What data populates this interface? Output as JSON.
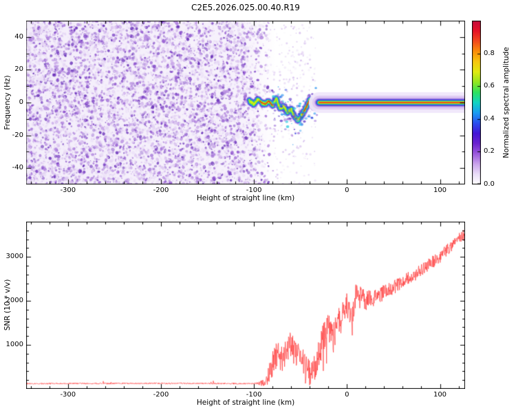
{
  "title": "C2E5.2026.025.00.40.R19",
  "colors": {
    "background": "#ffffff",
    "axis": "#000000",
    "snr_line": "#ff4040"
  },
  "chart_data": [
    {
      "type": "heatmap",
      "name": "spectrogram",
      "xlabel": "Height of straight line (km)",
      "ylabel": "Frequency (Hz)",
      "xlim": [
        -345,
        127
      ],
      "ylim": [
        -50,
        50
      ],
      "xticks": [
        -300,
        -200,
        -100,
        0,
        100
      ],
      "yticks": [
        40,
        20,
        0,
        -20,
        -40
      ],
      "grid": false,
      "colorbar": {
        "label": "Normalized spectral amplitude",
        "ticks": [
          "0.0",
          "0.2",
          "0.4",
          "0.6",
          "0.8"
        ],
        "tick_values": [
          0,
          0.2,
          0.4,
          0.6,
          0.8
        ],
        "range": [
          0,
          1
        ],
        "stops": [
          "#ffffff",
          "#eadef8",
          "#caa3ec",
          "#9b59dd",
          "#6b22cf",
          "#4316d6",
          "#2b50f0",
          "#1a9cf2",
          "#12d4c2",
          "#2ee25e",
          "#93e620",
          "#e0ea10",
          "#f7c60e",
          "#fb8d0a",
          "#f2491c",
          "#e51226",
          "#c50a3c"
        ]
      },
      "noise": {
        "x_range": [
          -345,
          -78
        ],
        "fade_start": -112,
        "freq_range": [
          -49,
          49
        ],
        "character": "low-amplitude purple speckle noise (amplitude ~0-0.3), fading out near -80 km"
      },
      "signal": {
        "band_x_range": [
          -30,
          127
        ],
        "band_center_hz": 0,
        "character": "coherent narrowband signal near 0 Hz, amplitude ~1 at core (red) with green/cyan/blue/purple fringes; wavy frequency excursions between -105 and -30 km",
        "wave_points": [
          [
            -105,
            1
          ],
          [
            -100,
            -1
          ],
          [
            -96,
            2
          ],
          [
            -92,
            0
          ],
          [
            -88,
            -1
          ],
          [
            -84,
            1
          ],
          [
            -80,
            -2
          ],
          [
            -76,
            3
          ],
          [
            -72,
            -4
          ],
          [
            -68,
            -2
          ],
          [
            -64,
            -6
          ],
          [
            -60,
            -4
          ],
          [
            -56,
            -9
          ],
          [
            -52,
            -11
          ],
          [
            -48,
            -7
          ],
          [
            -44,
            -3
          ],
          [
            -40,
            2
          ],
          [
            -36,
            -3
          ],
          [
            -32,
            -1
          ],
          [
            -30,
            0
          ]
        ]
      }
    },
    {
      "type": "line",
      "name": "snr",
      "xlabel": "Height of straight line (km)",
      "ylabel": "SNR (10 * v/v)",
      "xlim": [
        -345,
        127
      ],
      "ylim": [
        0,
        3800
      ],
      "xticks": [
        -300,
        -200,
        -100,
        0,
        100
      ],
      "yticks": [
        1000,
        2000,
        3000
      ],
      "line_color": "#ff4040",
      "x": [
        -345,
        -200,
        -100,
        -90,
        -85,
        -80,
        -75,
        -70,
        -65,
        -60,
        -55,
        -50,
        -45,
        -40,
        -35,
        -30,
        -25,
        -20,
        -15,
        -10,
        -5,
        0,
        5,
        10,
        15,
        20,
        30,
        40,
        50,
        60,
        70,
        80,
        90,
        100,
        110,
        120,
        127
      ],
      "y": [
        120,
        125,
        120,
        140,
        250,
        550,
        800,
        650,
        900,
        1000,
        750,
        850,
        450,
        320,
        480,
        800,
        1200,
        1400,
        1100,
        1500,
        1800,
        1900,
        1600,
        2200,
        2100,
        2000,
        2100,
        2200,
        2300,
        2450,
        2550,
        2700,
        2850,
        3000,
        3200,
        3400,
        3520
      ],
      "noise_band_x": [
        -345,
        -100,
        -90,
        -80,
        -20,
        20,
        60,
        127
      ],
      "noise_band_halfwidth": [
        15,
        15,
        80,
        300,
        350,
        220,
        150,
        130
      ]
    }
  ]
}
